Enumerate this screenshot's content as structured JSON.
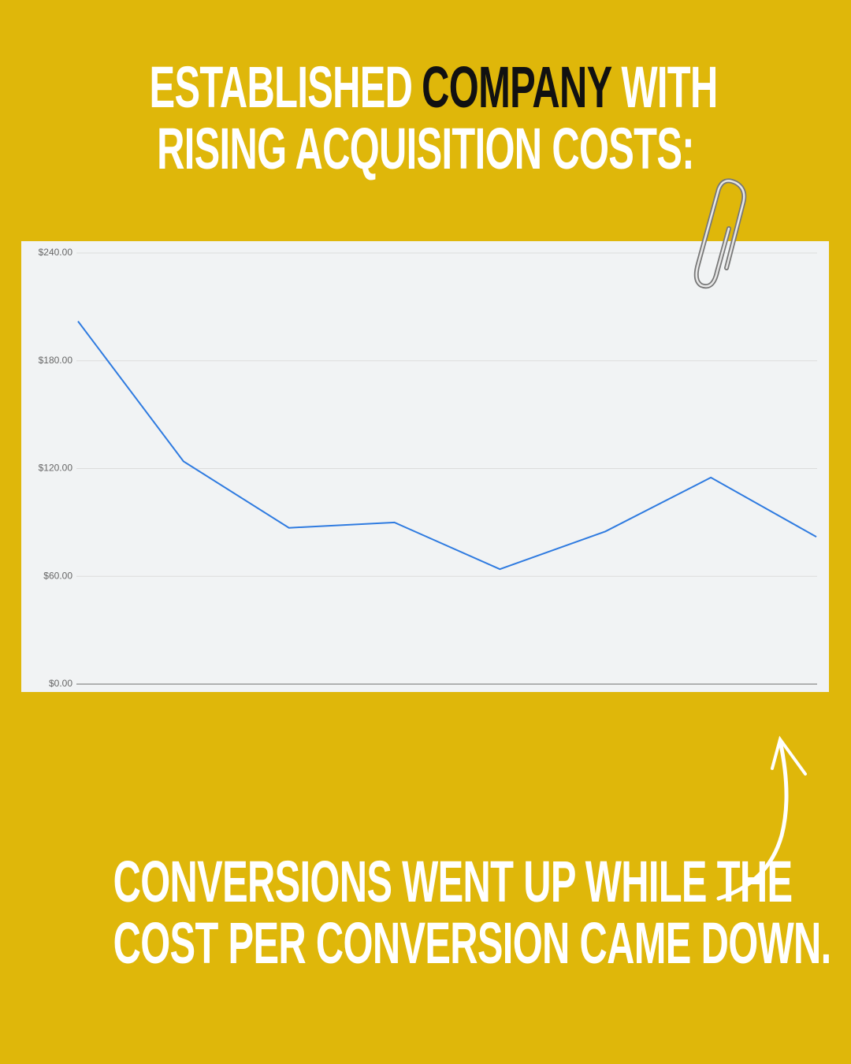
{
  "header": {
    "line1": [
      "ESTABLISHED",
      "COMPANY",
      "WITH"
    ],
    "line2": "RISING ACQUISITION COSTS:"
  },
  "footer": {
    "lines": [
      "CONVERSIONS WENT UP WHILE THE",
      "COST PER CONVERSION CAME DOWN."
    ]
  },
  "chart_data": {
    "type": "line",
    "categories": [
      null,
      null,
      null,
      null,
      null,
      null,
      null,
      null
    ],
    "series": [
      {
        "color": "#2f7be0",
        "values": [
          202,
          124,
          87,
          90,
          64,
          85,
          115,
          82
        ]
      }
    ],
    "ylim": [
      0,
      240
    ],
    "yticks": [
      {
        "value": 0,
        "label": "$0.00"
      },
      {
        "value": 60,
        "label": "$60.00"
      },
      {
        "value": 120,
        "label": "$120.00"
      },
      {
        "value": 180,
        "label": "$180.00"
      },
      {
        "value": 240,
        "label": "$240.00"
      }
    ],
    "grid": true
  }
}
